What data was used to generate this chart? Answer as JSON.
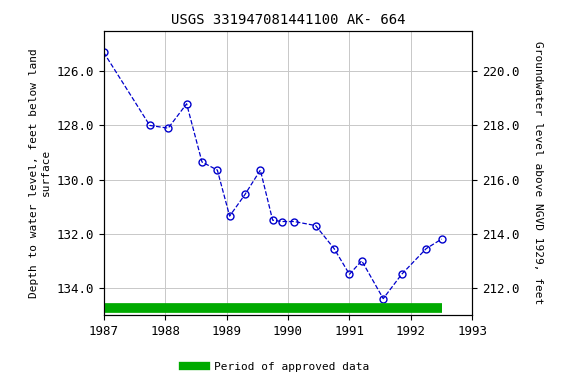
{
  "title": "USGS 331947081441100 AK- 664",
  "ylabel_left": "Depth to water level, feet below land\nsurface",
  "ylabel_right": "Groundwater level above NGVD 1929, feet",
  "xy_points": [
    [
      1987.0,
      125.3
    ],
    [
      1987.75,
      128.0
    ],
    [
      1988.05,
      128.1
    ],
    [
      1988.35,
      127.2
    ],
    [
      1988.6,
      129.35
    ],
    [
      1988.85,
      129.65
    ],
    [
      1989.05,
      131.35
    ],
    [
      1989.3,
      130.55
    ],
    [
      1989.55,
      129.65
    ],
    [
      1989.75,
      131.5
    ],
    [
      1989.9,
      131.55
    ],
    [
      1990.1,
      131.55
    ],
    [
      1990.45,
      131.7
    ],
    [
      1990.75,
      132.55
    ],
    [
      1991.0,
      133.5
    ],
    [
      1991.2,
      133.0
    ],
    [
      1991.55,
      134.4
    ],
    [
      1991.85,
      133.5
    ],
    [
      1992.25,
      132.55
    ],
    [
      1992.5,
      132.2
    ]
  ],
  "xlim": [
    1987,
    1993
  ],
  "ylim_left": [
    135.0,
    124.5
  ],
  "ylim_right": [
    211.0,
    221.5
  ],
  "xticks": [
    1987,
    1988,
    1989,
    1990,
    1991,
    1992,
    1993
  ],
  "yticks_left": [
    126.0,
    128.0,
    130.0,
    132.0,
    134.0
  ],
  "yticks_right": [
    220.0,
    218.0,
    216.0,
    214.0,
    212.0
  ],
  "line_color": "#0000cc",
  "marker_color": "#0000cc",
  "grid_color": "#c8c8c8",
  "background_color": "#ffffff",
  "green_bar_color": "#00aa00",
  "green_bar_xstart": 1987.0,
  "green_bar_xend": 1992.5,
  "green_bar_y": 134.75,
  "legend_label": "Period of approved data",
  "title_fontsize": 10,
  "axis_fontsize": 8,
  "tick_fontsize": 9
}
